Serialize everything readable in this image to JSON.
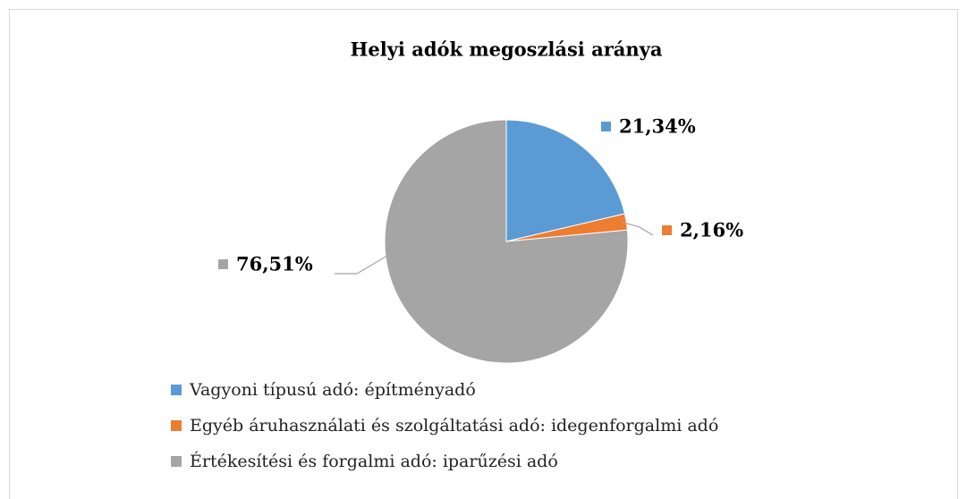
{
  "chart_data": {
    "type": "pie",
    "title": "Helyi adók megoszlási aránya",
    "categories": [
      "Vagyoni típusú adó: építményadó",
      "Egyéb áruhasználati és szolgáltatási adó: idegenforgalmi adó",
      "Értékesítési és forgalmi adó: iparűzési adó"
    ],
    "values": [
      21.34,
      2.16,
      76.51
    ],
    "value_labels": [
      "21,34%",
      "2,16%",
      "76,51%"
    ],
    "colors": [
      "#5b9bd5",
      "#ed7d31",
      "#a5a5a5"
    ],
    "legend": "bottom"
  }
}
